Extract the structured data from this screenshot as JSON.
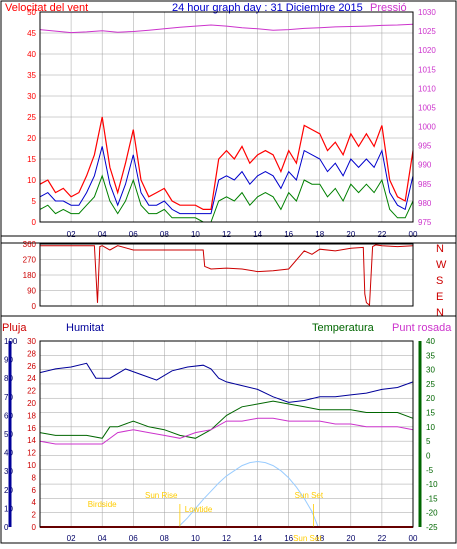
{
  "title": "24 hour graph day : 31 Diciembre 2015",
  "colors": {
    "wind": "#ff0000",
    "wind_avg": "#0000cc",
    "wind_low": "#008000",
    "pressure": "#cc33cc",
    "direction": "#cc0000",
    "rain": "#cc0000",
    "humidity": "#000099",
    "temperature": "#006600",
    "dewpoint": "#cc33cc",
    "solar": "#99ccff",
    "sun_label": "#ffcc00",
    "grid": "#a0a0a0",
    "frame": "#000000"
  },
  "chart_data": [
    {
      "type": "line",
      "name": "wind-pressure-panel",
      "left_axis_label": "Velocitat del vent",
      "right_axis_label": "Pressió",
      "ylim_left": [
        0,
        50
      ],
      "yticks_left": [
        0,
        5,
        10,
        15,
        20,
        25,
        30,
        35,
        40,
        45,
        50
      ],
      "ylim_right": [
        975,
        1030
      ],
      "yticks_right": [
        975,
        980,
        985,
        990,
        995,
        1000,
        1005,
        1010,
        1015,
        1020,
        1025,
        1030
      ],
      "x_ticks": [
        "02",
        "04",
        "06",
        "08",
        "10",
        "12",
        "14",
        "16",
        "18",
        "20",
        "22",
        "00"
      ],
      "series": [
        {
          "role": "wind_gust",
          "x": [
            0,
            0.5,
            1,
            1.5,
            2,
            2.5,
            3,
            3.5,
            4,
            4.5,
            5,
            5.5,
            6,
            6.5,
            7,
            7.5,
            8,
            8.5,
            9,
            9.5,
            10,
            10.5,
            11,
            11.5,
            12,
            12.5,
            13,
            13.5,
            14,
            14.5,
            15,
            15.5,
            16,
            16.5,
            17,
            17.5,
            18,
            18.5,
            19,
            19.5,
            20,
            20.5,
            21,
            21.5,
            22,
            22.5,
            23,
            23.5,
            24
          ],
          "values": [
            9,
            10,
            7,
            8,
            6,
            7,
            11,
            16,
            25,
            13,
            7,
            14,
            22,
            10,
            6,
            7,
            8,
            5,
            4,
            4,
            4,
            3,
            3,
            15,
            17,
            15,
            18,
            14,
            16,
            17,
            16,
            12,
            17,
            14,
            23,
            22,
            21,
            17,
            19,
            16,
            21,
            18,
            21,
            18,
            23,
            10,
            6,
            5,
            17
          ]
        },
        {
          "role": "wind_average",
          "x": [
            0,
            0.5,
            1,
            1.5,
            2,
            2.5,
            3,
            3.5,
            4,
            4.5,
            5,
            5.5,
            6,
            6.5,
            7,
            7.5,
            8,
            8.5,
            9,
            9.5,
            10,
            10.5,
            11,
            11.5,
            12,
            12.5,
            13,
            13.5,
            14,
            14.5,
            15,
            15.5,
            16,
            16.5,
            17,
            17.5,
            18,
            18.5,
            19,
            19.5,
            20,
            20.5,
            21,
            21.5,
            22,
            22.5,
            23,
            23.5,
            24
          ],
          "values": [
            6,
            7,
            5,
            5,
            4,
            4,
            7,
            11,
            18,
            9,
            4,
            9,
            16,
            7,
            4,
            4,
            5,
            3,
            2,
            2,
            2,
            2,
            2,
            10,
            11,
            10,
            12,
            9,
            11,
            12,
            11,
            8,
            12,
            10,
            17,
            16,
            15,
            12,
            14,
            11,
            15,
            13,
            15,
            13,
            17,
            7,
            4,
            3,
            11
          ]
        },
        {
          "role": "wind_low",
          "x": [
            0,
            0.5,
            1,
            1.5,
            2,
            2.5,
            3,
            3.5,
            4,
            4.5,
            5,
            5.5,
            6,
            6.5,
            7,
            7.5,
            8,
            8.5,
            9,
            9.5,
            10,
            10.5,
            11,
            11.5,
            12,
            12.5,
            13,
            13.5,
            14,
            14.5,
            15,
            15.5,
            16,
            16.5,
            17,
            17.5,
            18,
            18.5,
            19,
            19.5,
            20,
            20.5,
            21,
            21.5,
            22,
            22.5,
            23,
            23.5,
            24
          ],
          "values": [
            3,
            4,
            2,
            3,
            2,
            2,
            4,
            6,
            11,
            5,
            2,
            5,
            10,
            4,
            2,
            2,
            3,
            1,
            1,
            1,
            1,
            0,
            0,
            5,
            6,
            5,
            7,
            4,
            6,
            7,
            6,
            3,
            7,
            5,
            10,
            9,
            9,
            6,
            8,
            5,
            9,
            7,
            9,
            7,
            10,
            3,
            1,
            1,
            5
          ]
        },
        {
          "role": "pressure",
          "axis": "right",
          "x": [
            0,
            1,
            2,
            3,
            4,
            5,
            6,
            7,
            8,
            9,
            10,
            11,
            12,
            13,
            14,
            15,
            16,
            17,
            18,
            19,
            20,
            21,
            22,
            23,
            24
          ],
          "values": [
            1025.4,
            1025.0,
            1024.6,
            1024.8,
            1025.1,
            1024.7,
            1024.9,
            1025.2,
            1025.6,
            1026.0,
            1026.3,
            1026.6,
            1026.3,
            1025.9,
            1025.6,
            1025.2,
            1025.4,
            1025.7,
            1025.9,
            1026.1,
            1026.2,
            1026.3,
            1026.5,
            1026.6,
            1026.8
          ]
        }
      ]
    },
    {
      "type": "line",
      "name": "wind-direction-panel",
      "yticks_left": [
        0,
        90,
        180,
        270,
        360
      ],
      "ylim": [
        0,
        360
      ],
      "compass_labels": [
        "N",
        "W",
        "S",
        "E",
        "N"
      ],
      "x_ticks": [],
      "series": [
        {
          "role": "direction",
          "x": [
            0,
            3.5,
            3.7,
            3.85,
            4.0,
            4.5,
            5.0,
            6.0,
            7.0,
            8.0,
            9.0,
            10.0,
            10.5,
            10.6,
            11.0,
            12.0,
            13.0,
            14.0,
            15.0,
            16.0,
            17.0,
            17.5,
            18.0,
            19.0,
            20.0,
            20.8,
            20.9,
            21.0,
            21.2,
            21.4,
            21.6,
            22.0,
            23.0,
            24.0
          ],
          "values": [
            350,
            350,
            18,
            345,
            350,
            325,
            350,
            325,
            325,
            325,
            325,
            325,
            325,
            230,
            215,
            220,
            215,
            200,
            205,
            215,
            320,
            300,
            330,
            320,
            335,
            340,
            70,
            20,
            5,
            345,
            355,
            350,
            345,
            350
          ]
        }
      ]
    },
    {
      "type": "line",
      "name": "humidity-temperature-panel",
      "labels": {
        "rain": "Pluja",
        "humidity": "Humitat",
        "temperature": "Temperatura",
        "dewpoint": "Punt rosada"
      },
      "yticks_rain": [
        0,
        10,
        20,
        30,
        40,
        50,
        60,
        70,
        80,
        90,
        100
      ],
      "yticks_hum": [
        0,
        2,
        4,
        6,
        8,
        10,
        12,
        14,
        16,
        18,
        20,
        22,
        24,
        26,
        28,
        30
      ],
      "yticks_temp": [
        -25,
        -20,
        -15,
        -10,
        -5,
        0,
        5,
        10,
        15,
        20,
        25,
        30,
        35,
        40
      ],
      "ylim_rain": [
        0,
        100
      ],
      "ylim_temp": [
        -25,
        40
      ],
      "x_ticks": [
        "02",
        "04",
        "06",
        "08",
        "10",
        "12",
        "14",
        "16",
        "18",
        "20",
        "22",
        "00"
      ],
      "annotations": [
        "Birdside",
        "Sun Rise",
        "Lowtide",
        "Sun Set",
        "Sun Set"
      ],
      "series": [
        {
          "role": "humidity",
          "x": [
            0,
            1,
            2,
            3,
            3.6,
            4.5,
            5.5,
            6.5,
            7.5,
            8.5,
            9.5,
            10.5,
            11.0,
            11.5,
            12,
            13,
            14,
            15,
            16,
            17,
            18,
            19,
            20,
            21,
            22,
            23,
            24
          ],
          "values": [
            83,
            85,
            86,
            88,
            80,
            80,
            85,
            82,
            79,
            84,
            86,
            87,
            85,
            80,
            78,
            76,
            74,
            70,
            67,
            68,
            70,
            70,
            71,
            72,
            74,
            75,
            78
          ]
        },
        {
          "role": "temperature",
          "x": [
            0,
            1,
            2,
            3,
            4,
            4.5,
            5,
            6,
            7,
            8,
            9,
            10,
            11,
            12,
            13,
            14,
            15,
            16,
            17,
            18,
            19,
            20,
            21,
            22,
            23,
            24
          ],
          "values": [
            8,
            7,
            7,
            7,
            6,
            10,
            10,
            12,
            10,
            9,
            7,
            6,
            9,
            14,
            17,
            18,
            19,
            18,
            17,
            16,
            16,
            16,
            15,
            15,
            15,
            13
          ]
        },
        {
          "role": "dewpoint",
          "x": [
            0,
            1,
            2,
            3,
            4,
            5,
            6,
            7,
            8,
            9,
            10,
            11,
            12,
            13,
            14,
            15,
            16,
            17,
            18,
            19,
            20,
            21,
            22,
            23,
            24
          ],
          "values": [
            5,
            4,
            4,
            4,
            4,
            8,
            9,
            8,
            7,
            6,
            8,
            9,
            12,
            12,
            13,
            13,
            12,
            12,
            12,
            11,
            11,
            10,
            10,
            10,
            9
          ]
        },
        {
          "role": "solar",
          "axis": "rain",
          "x": [
            8.9,
            9.5,
            10,
            10.5,
            11,
            11.5,
            12,
            12.5,
            13,
            13.5,
            14,
            14.5,
            15,
            15.5,
            16,
            16.5,
            17,
            17.5,
            17.9
          ],
          "values": [
            0,
            9,
            18,
            27,
            35,
            43,
            50,
            55,
            60,
            63,
            64,
            63,
            60,
            55,
            48,
            39,
            28,
            15,
            0
          ]
        },
        {
          "role": "rain",
          "axis": "rain",
          "x": [
            0,
            24
          ],
          "values": [
            0,
            0
          ]
        }
      ]
    }
  ]
}
